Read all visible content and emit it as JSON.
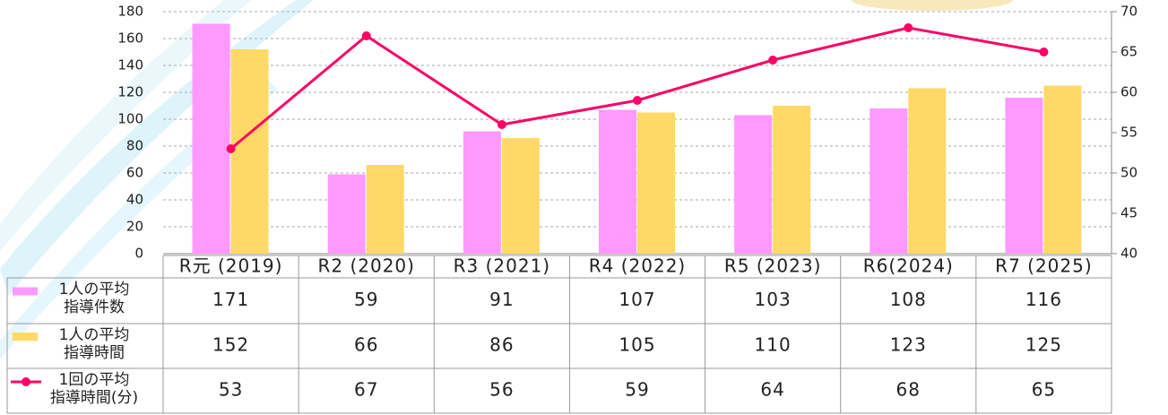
{
  "chart_data": {
    "type": "bar",
    "categories": [
      "R元 (2019)",
      "R2 (2020)",
      "R3 (2021)",
      "R4 (2022)",
      "R5 (2023)",
      "R6(2024)",
      "R7 (2025)"
    ],
    "series": [
      {
        "name": "1人の平均\n指導件数",
        "color": "#ff99ff",
        "values": [
          171,
          59,
          91,
          107,
          103,
          108,
          116
        ]
      },
      {
        "name": "1人の平均\n指導時間",
        "color": "#ffd966",
        "values": [
          152,
          66,
          86,
          105,
          110,
          123,
          125
        ]
      },
      {
        "name": "1回の平均\n指導時間(分)",
        "color": "#ff0066",
        "type": "line",
        "axis": "y2",
        "values": [
          53,
          67,
          56,
          59,
          64,
          68,
          65
        ]
      }
    ],
    "ylim": [
      0,
      180
    ],
    "yticks": [
      0,
      20,
      40,
      60,
      80,
      100,
      120,
      140,
      160,
      180
    ],
    "y2lim": [
      40,
      70
    ],
    "y2ticks": [
      40,
      45,
      50,
      55,
      60,
      65,
      70
    ],
    "grid": true
  }
}
